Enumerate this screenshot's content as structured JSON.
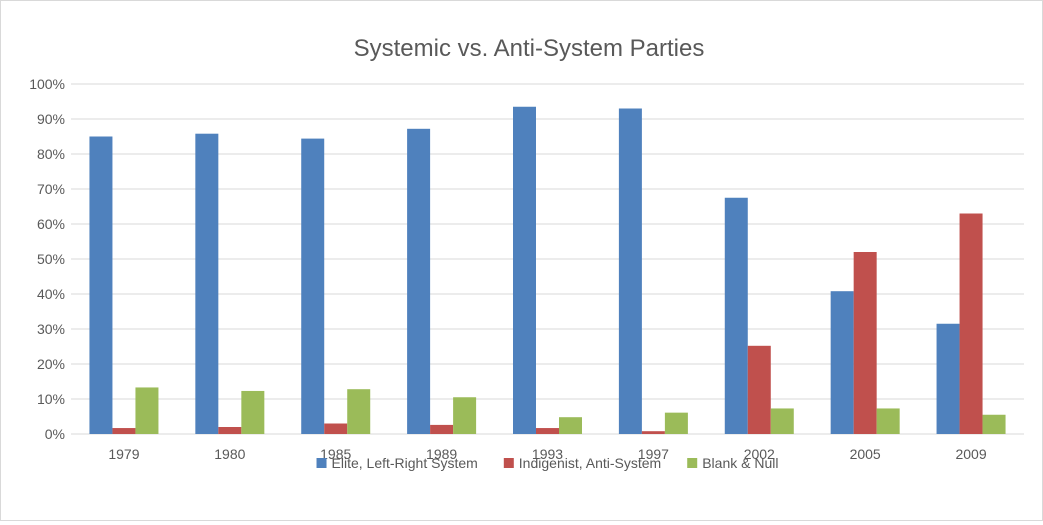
{
  "chart_data": {
    "type": "bar",
    "title": "Systemic vs. Anti-System Parties",
    "xlabel": "",
    "ylabel": "",
    "categories": [
      "1979",
      "1980",
      "1985",
      "1989",
      "1993",
      "1997",
      "2002",
      "2005",
      "2009"
    ],
    "series": [
      {
        "name": "Elite, Left-Right System",
        "color": "#4f81bd",
        "values": [
          85.0,
          85.8,
          84.4,
          87.2,
          93.5,
          93.0,
          67.5,
          40.8,
          31.5
        ]
      },
      {
        "name": "Indigenist, Anti-System",
        "color": "#c0504d",
        "values": [
          1.7,
          2.0,
          3.0,
          2.6,
          1.7,
          0.8,
          25.2,
          52.0,
          63.0
        ]
      },
      {
        "name": "Blank & Null",
        "color": "#9bbb59",
        "values": [
          13.3,
          12.3,
          12.8,
          10.5,
          4.8,
          6.1,
          7.3,
          7.3,
          5.5
        ]
      }
    ],
    "ylim": [
      0,
      100
    ],
    "yticks": [
      "0%",
      "10%",
      "20%",
      "30%",
      "40%",
      "50%",
      "60%",
      "70%",
      "80%",
      "90%",
      "100%"
    ],
    "grid": true,
    "legend_position": "bottom"
  }
}
